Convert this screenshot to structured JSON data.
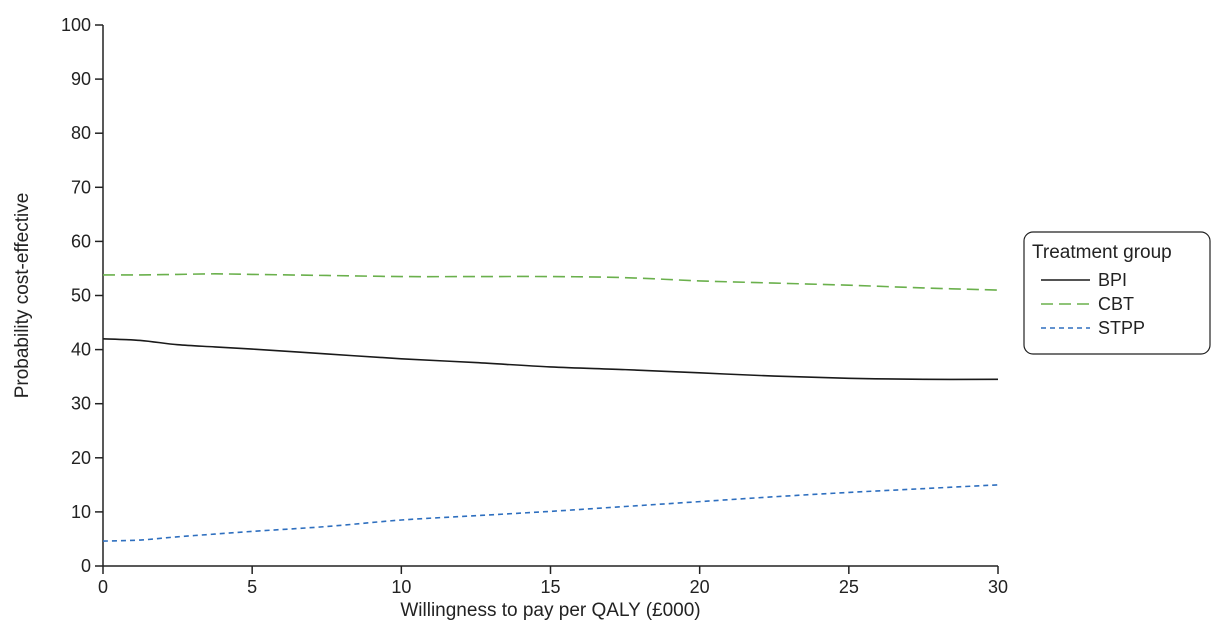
{
  "chart_data": {
    "type": "line",
    "xlabel": "Willingness to pay per QALY (£000)",
    "ylabel": "Probability cost-effective",
    "xlim": [
      0,
      30
    ],
    "ylim": [
      0,
      100
    ],
    "xticks": [
      0,
      5,
      10,
      15,
      20,
      25,
      30
    ],
    "yticks": [
      0,
      10,
      20,
      30,
      40,
      50,
      60,
      70,
      80,
      90,
      100
    ],
    "grid": false,
    "legend": {
      "title": "Treatment group",
      "placement": "right"
    },
    "x": [
      0,
      1.25,
      2.5,
      3.75,
      5,
      7.5,
      10,
      12.5,
      15,
      17.5,
      20,
      22.5,
      25,
      27.5,
      30
    ],
    "series": [
      {
        "name": "BPI",
        "color": "#1a1a1a",
        "dash": "solid",
        "values": [
          42.0,
          41.7,
          40.9,
          40.5,
          40.1,
          39.2,
          38.3,
          37.6,
          36.8,
          36.3,
          35.7,
          35.1,
          34.7,
          34.5,
          34.5
        ]
      },
      {
        "name": "CBT",
        "color": "#6ab04c",
        "dash": "long-dash",
        "values": [
          53.8,
          53.8,
          53.9,
          54.0,
          53.9,
          53.7,
          53.5,
          53.5,
          53.5,
          53.3,
          52.7,
          52.3,
          51.9,
          51.4,
          51.0
        ]
      },
      {
        "name": "STPP",
        "color": "#2e6fbf",
        "dash": "short-dash",
        "values": [
          4.6,
          4.8,
          5.4,
          5.9,
          6.4,
          7.3,
          8.5,
          9.3,
          10.1,
          11.0,
          11.9,
          12.8,
          13.6,
          14.3,
          15.0
        ]
      }
    ]
  }
}
